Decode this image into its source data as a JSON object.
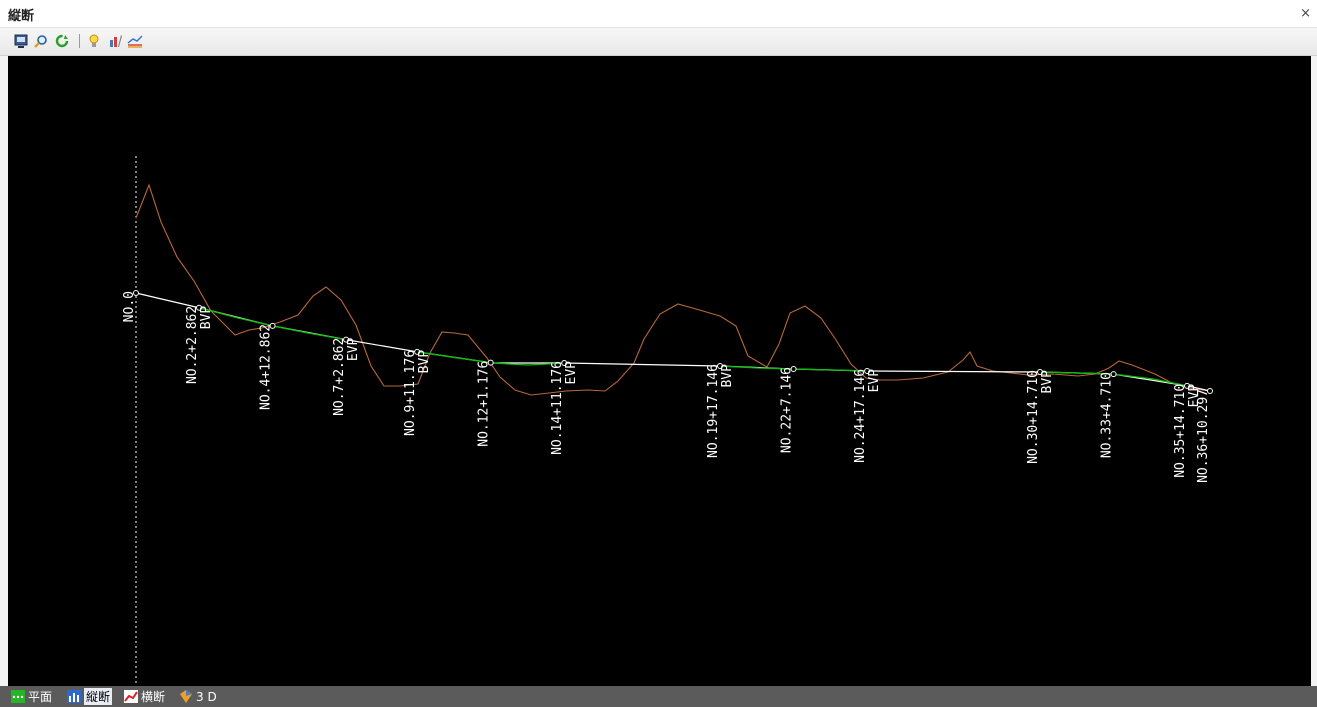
{
  "window": {
    "title": "縦断",
    "close_glyph": "×"
  },
  "toolbar": {
    "buttons": [
      {
        "name": "save-view-button",
        "icon": "monitor-icon"
      },
      {
        "name": "zoom-button",
        "icon": "magnifier-icon"
      },
      {
        "name": "refresh-button",
        "icon": "refresh-icon"
      },
      {
        "name": "hint-button",
        "icon": "lightbulb-icon"
      },
      {
        "name": "settings-button",
        "icon": "tools-icon"
      },
      {
        "name": "profile-display-button",
        "icon": "profile-lines-icon"
      }
    ]
  },
  "profile": {
    "stations": [
      {
        "label": "NO.0",
        "sub": "",
        "x": 0
      },
      {
        "label": "NO.2+2.862",
        "sub": "BVP",
        "x": 42.862
      },
      {
        "label": "NO.4+12.862",
        "sub": "",
        "x": 92.862
      },
      {
        "label": "NO.7+2.862",
        "sub": "EVP",
        "x": 142.862
      },
      {
        "label": "NO.9+11.176",
        "sub": "BVP",
        "x": 191.176
      },
      {
        "label": "NO.12+1.176",
        "sub": "",
        "x": 241.176
      },
      {
        "label": "NO.14+11.176",
        "sub": "EVP",
        "x": 291.176
      },
      {
        "label": "NO.19+17.146",
        "sub": "BVP",
        "x": 397.146
      },
      {
        "label": "NO.22+7.146",
        "sub": "",
        "x": 447.146
      },
      {
        "label": "NO.24+17.146",
        "sub": "EVP",
        "x": 497.146
      },
      {
        "label": "NO.30+14.710",
        "sub": "BVP",
        "x": 614.71
      },
      {
        "label": "NO.33+4.710",
        "sub": "",
        "x": 664.71
      },
      {
        "label": "NO.35+14.710",
        "sub": "EVP",
        "x": 714.71
      },
      {
        "label": "NO.36+10.297",
        "sub": "",
        "x": 730.297
      }
    ],
    "colors": {
      "background": "#000000",
      "ground_line": "#b8683a",
      "plan_tangent": "#ffffff",
      "vertical_curve": "#00c000",
      "station_marker": "#ffffff"
    }
  },
  "tabs": [
    {
      "name": "tab-plan",
      "label": "平面",
      "icon": "plan-icon",
      "active": false
    },
    {
      "name": "tab-profile",
      "label": "縦断",
      "icon": "profile-chart-icon",
      "active": true
    },
    {
      "name": "tab-cross-section",
      "label": "横断",
      "icon": "cross-section-icon",
      "active": false
    },
    {
      "name": "tab-3d",
      "label": "3 D",
      "icon": "3d-icon",
      "active": false
    }
  ]
}
